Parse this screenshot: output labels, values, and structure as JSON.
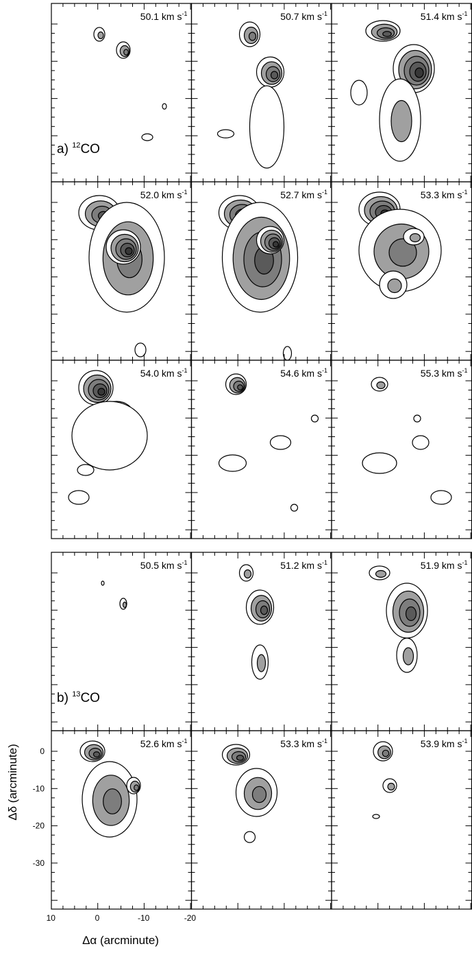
{
  "groups": [
    {
      "label": {
        "prefix": "a) ",
        "isotope": "12",
        "molecule": "CO"
      },
      "panels": [
        {
          "velocity": "50.1 km s",
          "exponent": "-1"
        },
        {
          "velocity": "50.7 km s",
          "exponent": "-1"
        },
        {
          "velocity": "51.4 km s",
          "exponent": "-1"
        },
        {
          "velocity": "52.0 km s",
          "exponent": "-1"
        },
        {
          "velocity": "52.7 km s",
          "exponent": "-1"
        },
        {
          "velocity": "53.3 km s",
          "exponent": "-1"
        },
        {
          "velocity": "54.0 km s",
          "exponent": "-1"
        },
        {
          "velocity": "54.6 km s",
          "exponent": "-1"
        },
        {
          "velocity": "55.3 km s",
          "exponent": "-1"
        }
      ]
    },
    {
      "label": {
        "prefix": "b) ",
        "isotope": "13",
        "molecule": "CO"
      },
      "panels": [
        {
          "velocity": "50.5 km s",
          "exponent": "-1"
        },
        {
          "velocity": "51.2 km s",
          "exponent": "-1"
        },
        {
          "velocity": "51.9 km s",
          "exponent": "-1"
        },
        {
          "velocity": "52.6 km s",
          "exponent": "-1"
        },
        {
          "velocity": "53.3 km s",
          "exponent": "-1"
        },
        {
          "velocity": "53.9 km s",
          "exponent": "-1"
        }
      ]
    }
  ],
  "axes": {
    "y_title": "Δδ (arcminute)",
    "x_title": "Δα (arcminute)",
    "y_ticks": [
      0,
      -10,
      -20,
      -30
    ],
    "x_ticks": [
      10,
      0,
      -10,
      -20
    ]
  }
}
